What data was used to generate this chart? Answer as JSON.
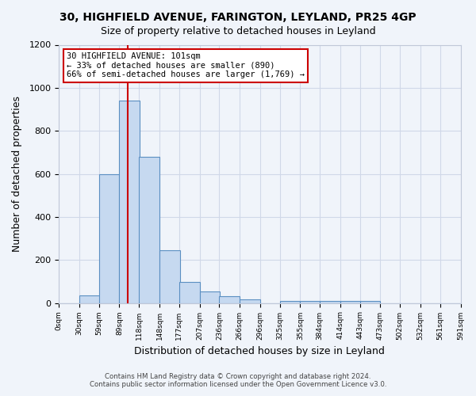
{
  "title1": "30, HIGHFIELD AVENUE, FARINGTON, LEYLAND, PR25 4GP",
  "title2": "Size of property relative to detached houses in Leyland",
  "xlabel": "Distribution of detached houses by size in Leyland",
  "ylabel": "Number of detached properties",
  "annotation_line1": "30 HIGHFIELD AVENUE: 101sqm",
  "annotation_line2": "← 33% of detached houses are smaller (890)",
  "annotation_line3": "66% of semi-detached houses are larger (1,769) →",
  "property_size": 101,
  "bin_edges": [
    0,
    30,
    59,
    89,
    118,
    148,
    177,
    207,
    236,
    266,
    296,
    325,
    355,
    384,
    414,
    443,
    473,
    502,
    532,
    561,
    591
  ],
  "bin_counts": [
    0,
    35,
    600,
    940,
    680,
    245,
    98,
    52,
    32,
    18,
    0,
    10,
    8,
    8,
    10,
    10,
    0,
    0,
    0,
    0
  ],
  "bar_color": "#c6d9f0",
  "bar_edge_color": "#5a8fc2",
  "vline_color": "#cc0000",
  "vline_x": 101,
  "annotation_box_color": "#ffffff",
  "annotation_box_edge": "#cc0000",
  "grid_color": "#d0d8e8",
  "footer_line1": "Contains HM Land Registry data © Crown copyright and database right 2024.",
  "footer_line2": "Contains public sector information licensed under the Open Government Licence v3.0.",
  "ylim": [
    0,
    1200
  ],
  "yticks": [
    0,
    200,
    400,
    600,
    800,
    1000,
    1200
  ],
  "figsize": [
    6.0,
    5.0
  ],
  "dpi": 100
}
